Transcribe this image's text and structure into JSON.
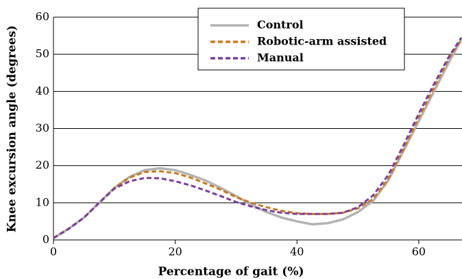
{
  "chart_data": {
    "type": "line",
    "x_label": "Percentage of gait (%)",
    "y_label": "Knee excursion angle (degrees)",
    "x": [
      0,
      2.5,
      5,
      7.5,
      10,
      12.5,
      15,
      17.5,
      20,
      22.5,
      25,
      27.5,
      30,
      32.5,
      35,
      37.5,
      40,
      42.5,
      45,
      47.5,
      50,
      52.5,
      55,
      57.5,
      60,
      62.5,
      65,
      67
    ],
    "series": [
      {
        "name": "Control",
        "color": "#b3b3b3",
        "dash": "solid",
        "values": [
          0.5,
          3,
          6,
          10,
          14,
          17,
          18.8,
          19.3,
          18.8,
          17.5,
          16,
          14,
          11.8,
          9.5,
          7.5,
          6,
          5,
          4.2,
          4.5,
          5.5,
          7.5,
          10.5,
          16,
          24,
          32,
          40,
          48,
          54
        ]
      },
      {
        "name": "Robotic-arm assisted",
        "color": "#c8781e",
        "dash": "dashed",
        "values": [
          0.5,
          3,
          6,
          10,
          14,
          16.8,
          18.3,
          18.5,
          18,
          16.8,
          15.2,
          13.5,
          11.5,
          10,
          8.8,
          7.8,
          7.2,
          7,
          7,
          7.3,
          8.5,
          11,
          16.5,
          24.5,
          33,
          41,
          49,
          54
        ]
      },
      {
        "name": "Manual",
        "color": "#7b3f9b",
        "dash": "dashed",
        "values": [
          0.5,
          3,
          6,
          10,
          13.8,
          15.8,
          16.7,
          16.6,
          15.8,
          14.7,
          13.3,
          11.8,
          10.2,
          9,
          8,
          7.3,
          7,
          7,
          7,
          7.3,
          8.8,
          12,
          17.5,
          25.5,
          34,
          42,
          49.5,
          54.5
        ]
      }
    ],
    "xlim": [
      0,
      67.1
    ],
    "xticks": [
      0,
      20,
      40,
      60
    ],
    "ylim": [
      0,
      60
    ],
    "yticks": [
      0,
      10,
      20,
      30,
      40,
      50,
      60
    ],
    "grid": true,
    "legend": "top"
  }
}
